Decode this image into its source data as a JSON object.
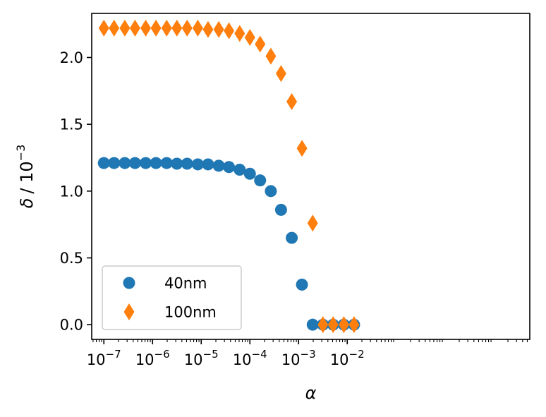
{
  "chart_data": {
    "type": "scatter",
    "title": "",
    "xlabel": "α",
    "ylabel_symbol": "δ",
    "ylabel_unit": "/ 10",
    "ylabel_exponent": "−3",
    "xscale": "log",
    "xlim_exp": [
      -7.25,
      1.75
    ],
    "ylim": [
      -0.11,
      2.33
    ],
    "yticks": [
      {
        "value": 0.0,
        "label": "0.0"
      },
      {
        "value": 0.5,
        "label": "0.5"
      },
      {
        "value": 1.0,
        "label": "1.0"
      },
      {
        "value": 1.5,
        "label": "1.5"
      },
      {
        "value": 2.0,
        "label": "2.0"
      }
    ],
    "xticks": [
      {
        "exp": -7,
        "base": "10",
        "sup": "−7"
      },
      {
        "exp": -6,
        "base": "10",
        "sup": "−6"
      },
      {
        "exp": -5,
        "base": "10",
        "sup": "−5"
      },
      {
        "exp": -4,
        "base": "10",
        "sup": "−4"
      },
      {
        "exp": -3,
        "base": "10",
        "sup": "−3"
      },
      {
        "exp": -2,
        "base": "10",
        "sup": "−2"
      }
    ],
    "legend_position": "lower-left",
    "series": [
      {
        "name": "40nm",
        "marker": "circle",
        "color": "#1f77b4",
        "x_exp": [
          -7.0,
          -6.79,
          -6.57,
          -6.36,
          -6.14,
          -5.93,
          -5.71,
          -5.5,
          -5.29,
          -5.07,
          -4.86,
          -4.64,
          -4.43,
          -4.21,
          -4.0,
          -3.79,
          -3.57,
          -3.36,
          -3.14,
          -2.93,
          -2.71,
          -2.5,
          -2.29,
          -2.07,
          -1.86
        ],
        "values": [
          1.21,
          1.21,
          1.21,
          1.21,
          1.21,
          1.21,
          1.21,
          1.205,
          1.205,
          1.2,
          1.2,
          1.19,
          1.18,
          1.16,
          1.13,
          1.08,
          1.0,
          0.86,
          0.65,
          0.3,
          0.0,
          0.0,
          0.0,
          0.0,
          0.0
        ]
      },
      {
        "name": "100nm",
        "marker": "thin_diamond",
        "color": "#ff7f0e",
        "x_exp": [
          -7.0,
          -6.79,
          -6.57,
          -6.36,
          -6.14,
          -5.93,
          -5.71,
          -5.5,
          -5.29,
          -5.07,
          -4.86,
          -4.64,
          -4.43,
          -4.21,
          -4.0,
          -3.79,
          -3.57,
          -3.36,
          -3.14,
          -2.93,
          -2.71,
          -2.5,
          -2.29,
          -2.07,
          -1.86
        ],
        "values": [
          2.22,
          2.22,
          2.22,
          2.22,
          2.22,
          2.22,
          2.22,
          2.22,
          2.22,
          2.22,
          2.21,
          2.21,
          2.2,
          2.18,
          2.15,
          2.1,
          2.01,
          1.88,
          1.67,
          1.32,
          0.76,
          0.0,
          0.0,
          0.0,
          0.0
        ]
      }
    ]
  }
}
